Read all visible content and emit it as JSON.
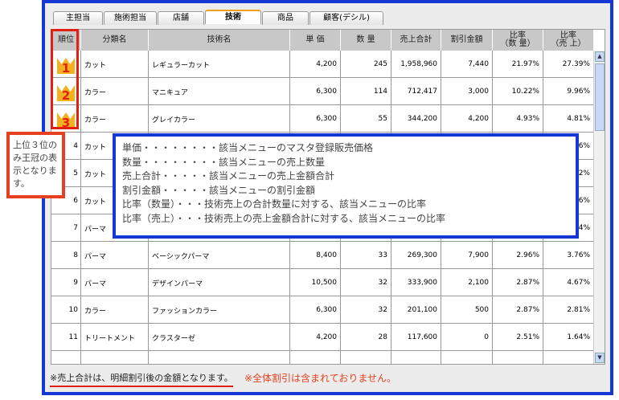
{
  "tabs": [
    {
      "label": "主担当"
    },
    {
      "label": "施術担当"
    },
    {
      "label": "店舗"
    },
    {
      "label": "技術",
      "active": true
    },
    {
      "label": "商品"
    },
    {
      "label": "顧客(デシル)"
    }
  ],
  "columns": [
    "順位",
    "分類名",
    "技術名",
    "単 価",
    "数 量",
    "売上合計",
    "割引金額",
    "比率\n（数 量）",
    "比率\n（売 上）"
  ],
  "rows": [
    [
      "1",
      "カット",
      "レギュラーカット",
      "4,200",
      "245",
      "1,958,960",
      "7,440",
      "21.97%",
      "27.39%"
    ],
    [
      "2",
      "カラー",
      "マニキュア",
      "6,300",
      "114",
      "712,417",
      "3,000",
      "10.22%",
      "9.96%"
    ],
    [
      "3",
      "カラー",
      "グレイカラー",
      "6,300",
      "55",
      "344,200",
      "4,200",
      "4.93%",
      "4.81%"
    ],
    [
      "4",
      "カット",
      "",
      "",
      "",
      "",
      "",
      "",
      "06%"
    ],
    [
      "5",
      "カット",
      "",
      "",
      "",
      "",
      "",
      "",
      "62%"
    ],
    [
      "6",
      "カット",
      "",
      "",
      "",
      "",
      "",
      "",
      "06%"
    ],
    [
      "7",
      "パーマ",
      "",
      "",
      "",
      "",
      "",
      "",
      "4%"
    ],
    [
      "8",
      "パーマ",
      "ベーシックパーマ",
      "8,400",
      "33",
      "269,300",
      "7,900",
      "2.96%",
      "3.76%"
    ],
    [
      "9",
      "パーマ",
      "デザインパーマ",
      "10,500",
      "32",
      "333,900",
      "2,100",
      "2.87%",
      "4.67%"
    ],
    [
      "10",
      "カラー",
      "ファッションカラー",
      "6,300",
      "32",
      "201,100",
      "500",
      "2.87%",
      "2.81%"
    ],
    [
      "11",
      "トリートメント",
      "クラスターゼ",
      "4,200",
      "28",
      "117,600",
      "0",
      "2.51%",
      "1.64%"
    ],
    [
      "",
      "",
      "",
      "",
      "",
      "",
      "",
      "",
      ""
    ]
  ],
  "callout": {
    "text": "上位３位のみ王冠の表示となります。"
  },
  "legend": [
    "単価・・・・・・・・該当メニューのマスタ登録販売価格",
    "数量・・・・・・・・該当メニューの売上数量",
    "売上合計・・・・・該当メニューの売上金額合計",
    "割引金額・・・・・該当メニューの割引金額",
    "比率（数量）・・・技術売上の合計数量に対する、該当メニューの比率",
    "比率（売上）・・・技術売上の売上金額合計に対する、該当メニューの比率"
  ],
  "footer": {
    "note1": "※売上合計は、明細割引後の金額となります。",
    "note2": "※全体割引は含まれておりません。"
  },
  "colors": {
    "frame": "#1437d6",
    "highlight": "#e02010",
    "crown": "#f5b020"
  }
}
